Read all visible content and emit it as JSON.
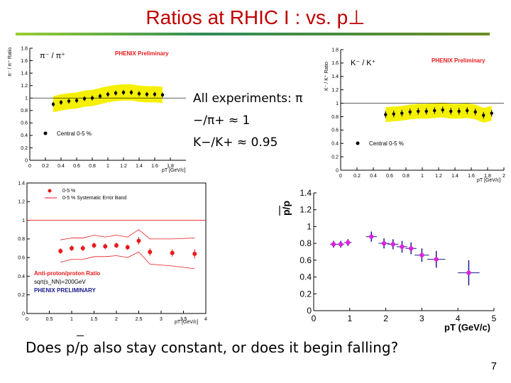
{
  "title": "Ratios at RHIC I : vs. p⊥",
  "annotation_lines": [
    "All experiments: π",
    "−/π+ ≈ 1",
    "K−/K+ ≈ 0.95"
  ],
  "question": "Does  p/p also stay constant, or does it begin falling?",
  "page_number": "7",
  "colors": {
    "title": "#c00000",
    "band": "#f5f000",
    "phenix": "#e8191c",
    "purple": "#1a1a8c",
    "magenta": "#e020e0"
  },
  "chart_data": [
    {
      "type": "scatter",
      "panel": "pi-ratio",
      "ylabel_text": "π⁻ / π⁺ Ratio",
      "plot_label": "π⁻ / π⁺",
      "prelim_label": "PHENIX Preliminary",
      "legend": "Central 0-5 %",
      "xlabel": "pT [GeV/c]",
      "xlim": [
        0,
        2
      ],
      "ylim": [
        0,
        1.8
      ],
      "xticks": [
        "0",
        "0.2",
        "0.4",
        "0.6",
        "0.8",
        "1",
        "1.2",
        "1.4",
        "1.6",
        "1.8"
      ],
      "yticks": [
        "0",
        "0.2",
        "0.4",
        "0.6",
        "0.8",
        "1",
        "1.2",
        "1.4",
        "1.6",
        "1.8"
      ],
      "x": [
        0.3,
        0.4,
        0.5,
        0.6,
        0.7,
        0.8,
        0.9,
        1.0,
        1.1,
        1.2,
        1.3,
        1.4,
        1.5,
        1.6,
        1.7
      ],
      "y": [
        0.9,
        0.93,
        0.95,
        0.96,
        0.99,
        1.0,
        1.03,
        1.06,
        1.08,
        1.09,
        1.09,
        1.07,
        1.06,
        1.06,
        1.05
      ],
      "band_halfwidth": 0.13
    },
    {
      "type": "scatter",
      "panel": "k-ratio",
      "ylabel_text": "K⁻ / K⁺ Ratio",
      "plot_label": "K⁻ / K⁺",
      "prelim_label": "PHENIX Preliminary",
      "legend": "Central 0-5 %",
      "xlabel": "pT [GeV/c]",
      "xlim": [
        0,
        2
      ],
      "ylim": [
        0,
        1.8
      ],
      "xticks": [
        "0",
        "0.2",
        "0.4",
        "0.6",
        "0.8",
        "1",
        "1.2",
        "1.4",
        "1.6",
        "1.8",
        "2"
      ],
      "yticks": [
        "0",
        "0.2",
        "0.4",
        "0.6",
        "0.8",
        "1",
        "1.2",
        "1.4",
        "1.6",
        "1.8"
      ],
      "x": [
        0.55,
        0.65,
        0.75,
        0.85,
        0.95,
        1.05,
        1.15,
        1.25,
        1.35,
        1.45,
        1.55,
        1.65,
        1.75,
        1.85
      ],
      "y": [
        0.83,
        0.84,
        0.85,
        0.87,
        0.88,
        0.88,
        0.89,
        0.9,
        0.88,
        0.88,
        0.89,
        0.87,
        0.82,
        0.85
      ],
      "band_halfwidth": 0.11
    },
    {
      "type": "scatter",
      "panel": "pbar-p-left",
      "prelim_label": "PHENIX PRELIMINARY",
      "legend": [
        "0-5 %",
        "0-5 % Systematic Error Band"
      ],
      "annotation": [
        "Anti-proton/proton Ratio",
        "sqrt(s_NN)=200GeV",
        "PHENIX PRELIMINARY"
      ],
      "xlabel": "pT [GeV/c]",
      "xlim": [
        0,
        4
      ],
      "ylim": [
        0,
        1.4
      ],
      "xticks": [
        "0",
        "0.5",
        "1",
        "1.5",
        "2",
        "2.5",
        "3",
        "3.5",
        "4"
      ],
      "yticks": [
        "0",
        "0.2",
        "0.4",
        "0.6",
        "0.8",
        "1",
        "1.2",
        "1.4"
      ],
      "x": [
        0.75,
        1.0,
        1.25,
        1.5,
        1.75,
        2.0,
        2.25,
        2.5,
        2.75,
        3.25,
        3.75
      ],
      "y": [
        0.67,
        0.7,
        0.7,
        0.73,
        0.72,
        0.73,
        0.71,
        0.78,
        0.66,
        0.65,
        0.64
      ],
      "err": [
        0.03,
        0.03,
        0.03,
        0.03,
        0.03,
        0.03,
        0.03,
        0.04,
        0.04,
        0.04,
        0.05
      ],
      "band_upper": [
        0.79,
        0.81,
        0.81,
        0.84,
        0.82,
        0.84,
        0.82,
        0.9,
        0.8,
        0.8,
        0.81
      ],
      "band_lower": [
        0.55,
        0.58,
        0.58,
        0.61,
        0.61,
        0.62,
        0.6,
        0.66,
        0.53,
        0.51,
        0.48
      ]
    },
    {
      "type": "scatter",
      "panel": "pbar-p-right",
      "ylabel": "p/p",
      "xlabel": "pT (GeV/c)",
      "xlim": [
        0,
        5
      ],
      "ylim": [
        0,
        1.4
      ],
      "xticks": [
        "0",
        "1",
        "2",
        "3",
        "4",
        "5"
      ],
      "yticks": [
        "0",
        "0.2",
        "0.4",
        "0.6",
        "0.8",
        "1",
        "1.2",
        "1.4"
      ],
      "x": [
        0.55,
        0.75,
        0.95,
        1.6,
        1.95,
        2.2,
        2.45,
        2.7,
        3.0,
        3.4,
        4.3
      ],
      "y": [
        0.79,
        0.79,
        0.81,
        0.88,
        0.8,
        0.79,
        0.76,
        0.74,
        0.66,
        0.61,
        0.45
      ],
      "xerr": [
        0.1,
        0.1,
        0.1,
        0.15,
        0.15,
        0.15,
        0.15,
        0.15,
        0.2,
        0.25,
        0.3
      ],
      "yerr": [
        0.04,
        0.04,
        0.04,
        0.06,
        0.06,
        0.06,
        0.07,
        0.07,
        0.08,
        0.1,
        0.15
      ]
    }
  ]
}
